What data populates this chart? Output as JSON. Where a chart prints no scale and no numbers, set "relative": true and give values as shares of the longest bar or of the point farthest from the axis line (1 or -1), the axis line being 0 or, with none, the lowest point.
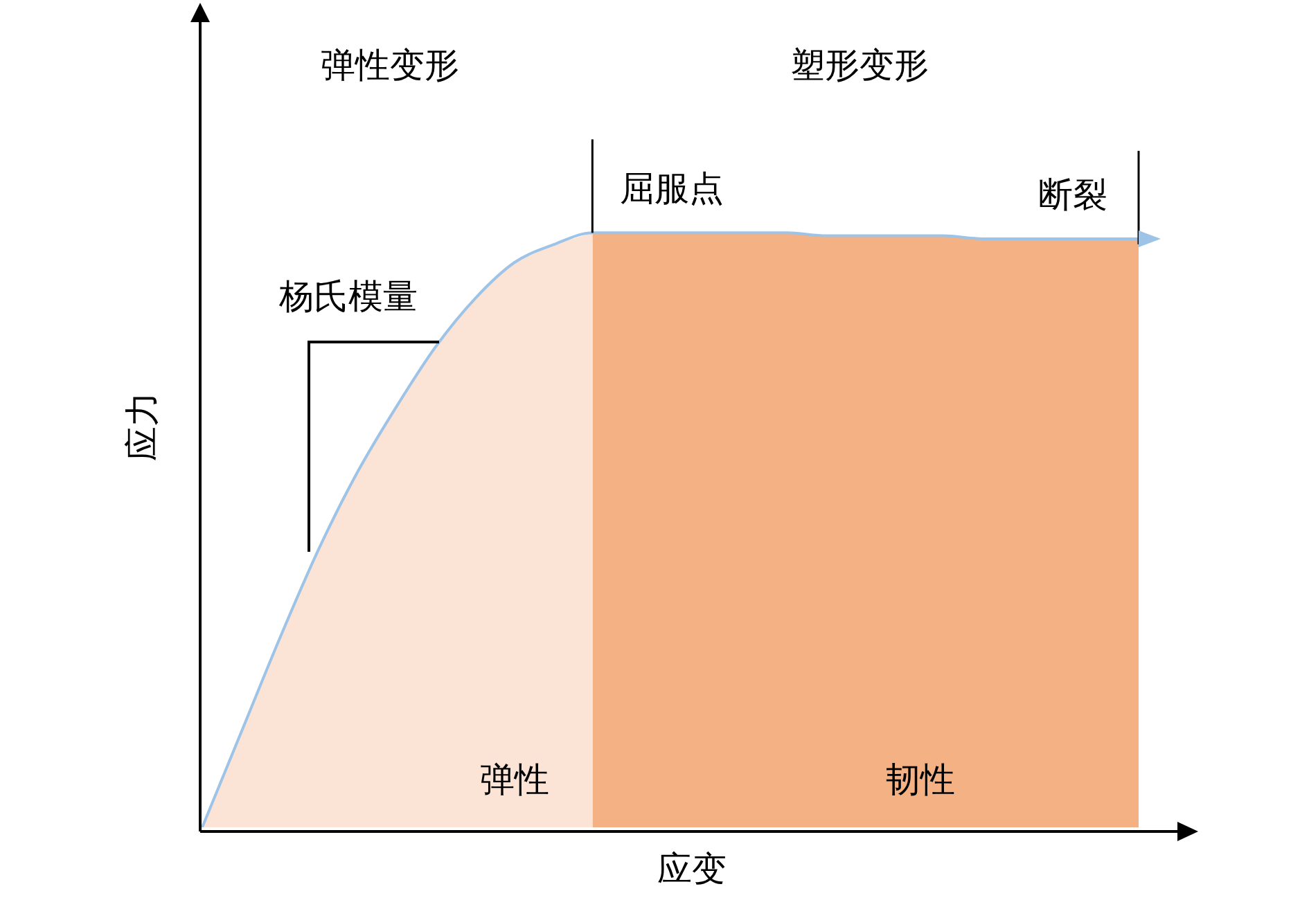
{
  "chart_data": {
    "type": "line",
    "relative": true,
    "xlabel": "应变",
    "ylabel": "应力",
    "categories": [
      null,
      null,
      null,
      null,
      null,
      null,
      null,
      null,
      null,
      null,
      null,
      null,
      null,
      null,
      null,
      null,
      null,
      null,
      null,
      null,
      null,
      null,
      null,
      null,
      null
    ],
    "series": [
      {
        "type": "area",
        "name": "弹性",
        "color": "#fbe3d5",
        "values": [
          0,
          0.16,
          0.32,
          0.47,
          0.6,
          0.71,
          0.81,
          0.89,
          0.95,
          0.98,
          1,
          null,
          null,
          null,
          null,
          null,
          null,
          null,
          null,
          null,
          null,
          null,
          null,
          null,
          null
        ]
      },
      {
        "type": "area",
        "name": "韧性",
        "color": "#f4b183",
        "values": [
          null,
          null,
          null,
          null,
          null,
          null,
          null,
          null,
          null,
          null,
          1,
          1,
          1,
          1,
          1,
          1,
          0.995,
          0.995,
          0.995,
          0.995,
          0.99,
          0.99,
          0.99,
          0.99,
          0.99
        ]
      },
      {
        "type": "line",
        "color": "#9dc3e6",
        "values": [
          0,
          0.16,
          0.32,
          0.47,
          0.6,
          0.71,
          0.81,
          0.89,
          0.95,
          0.98,
          1,
          1,
          1,
          1,
          1,
          1,
          0.995,
          0.995,
          0.995,
          0.995,
          0.99,
          0.99,
          0.99,
          0.99,
          0.99
        ]
      }
    ],
    "ref_lines": [
      {
        "axis": "x",
        "label": "屈服点",
        "color": "#000000"
      },
      {
        "axis": "x",
        "label": "断裂",
        "color": "#000000"
      }
    ],
    "annotations": [
      "弹性变形",
      "塑形变形",
      "杨氏模量"
    ],
    "marker": "none",
    "line_style": "solid",
    "grid": false,
    "legend": false
  }
}
